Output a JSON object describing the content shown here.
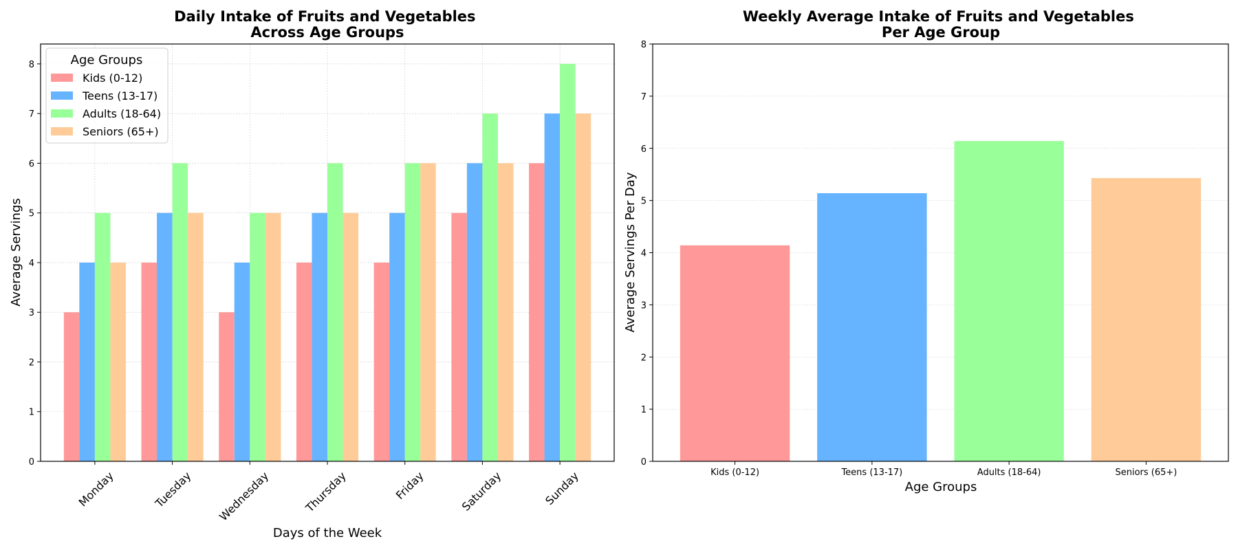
{
  "chart_data": [
    {
      "type": "bar",
      "title": "Daily Intake of Fruits and Vegetables\nAcross Age Groups",
      "xlabel": "Days of the Week",
      "ylabel": "Average Servings",
      "categories": [
        "Monday",
        "Tuesday",
        "Wednesday",
        "Thursday",
        "Friday",
        "Saturday",
        "Sunday"
      ],
      "series": [
        {
          "name": "Kids (0-12)",
          "color": "#ff9999",
          "values": [
            3,
            4,
            3,
            4,
            4,
            5,
            6
          ]
        },
        {
          "name": "Teens (13-17)",
          "color": "#66b3ff",
          "values": [
            4,
            5,
            4,
            5,
            5,
            6,
            7
          ]
        },
        {
          "name": "Adults (18-64)",
          "color": "#99ff99",
          "values": [
            5,
            6,
            5,
            6,
            6,
            7,
            8
          ]
        },
        {
          "name": "Seniors (65+)",
          "color": "#ffcc99",
          "values": [
            4,
            5,
            5,
            5,
            6,
            6,
            7
          ]
        }
      ],
      "ylim": [
        0,
        8.4
      ],
      "yticks": [
        0,
        1,
        2,
        3,
        4,
        5,
        6,
        7,
        8
      ],
      "grid": true,
      "legend": {
        "title": "Age Groups",
        "position": "top-left"
      }
    },
    {
      "type": "bar",
      "title": "Weekly Average Intake of Fruits and Vegetables\nPer Age Group",
      "xlabel": "Age Groups",
      "ylabel": "Average Servings Per Day",
      "categories": [
        "Kids (0-12)",
        "Teens (13-17)",
        "Adults (18-64)",
        "Seniors (65+)"
      ],
      "colors": [
        "#ff9999",
        "#66b3ff",
        "#99ff99",
        "#ffcc99"
      ],
      "values": [
        4.14,
        5.14,
        6.14,
        5.43
      ],
      "ylim": [
        0,
        8
      ],
      "yticks": [
        0,
        1,
        2,
        3,
        4,
        5,
        6,
        7,
        8
      ],
      "grid": "y-only"
    }
  ]
}
